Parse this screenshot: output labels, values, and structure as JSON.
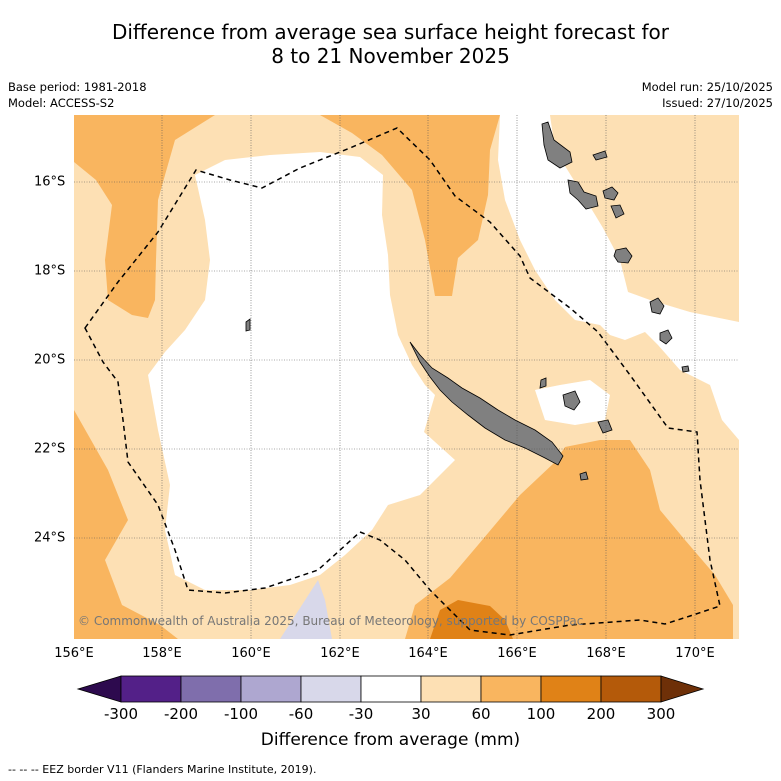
{
  "title": {
    "line1": "Difference from average sea surface height forecast for",
    "line2": "8 to 21 November 2025"
  },
  "meta": {
    "base_period": "Base period: 1981-2018",
    "model": "Model: ACCESS-S2",
    "model_run": "Model run: 25/10/2025",
    "issued": "Issued: 27/10/2025"
  },
  "map": {
    "copyright": "© Commonwealth of Australia 2025, Bureau of Meteorology, supported by COSPPac",
    "lon_labels": [
      "156°E",
      "158°E",
      "160°E",
      "162°E",
      "164°E",
      "166°E",
      "168°E",
      "170°E"
    ],
    "lat_labels": [
      "16°S",
      "18°S",
      "20°S",
      "22°S",
      "24°S"
    ],
    "land_color": "#808080",
    "eez_line": "dashed"
  },
  "colorbar": {
    "ticks": [
      "-300",
      "-200",
      "-100",
      "-60",
      "-30",
      "30",
      "60",
      "100",
      "200",
      "300"
    ],
    "colors": {
      "below": "#2d0a4e",
      "c1": "#532088",
      "c2": "#7f6eac",
      "c3": "#aea7d0",
      "c4": "#d8d8ea",
      "c5": "#ffffff",
      "c6": "#fde0b4",
      "c7": "#f9b55f",
      "c8": "#e08217",
      "c9": "#b45a0a",
      "above": "#6e3008"
    },
    "title": "Difference from average (mm)"
  },
  "footer": "--  --  -- EEZ border V11 (Flanders Marine Institute, 2019)."
}
